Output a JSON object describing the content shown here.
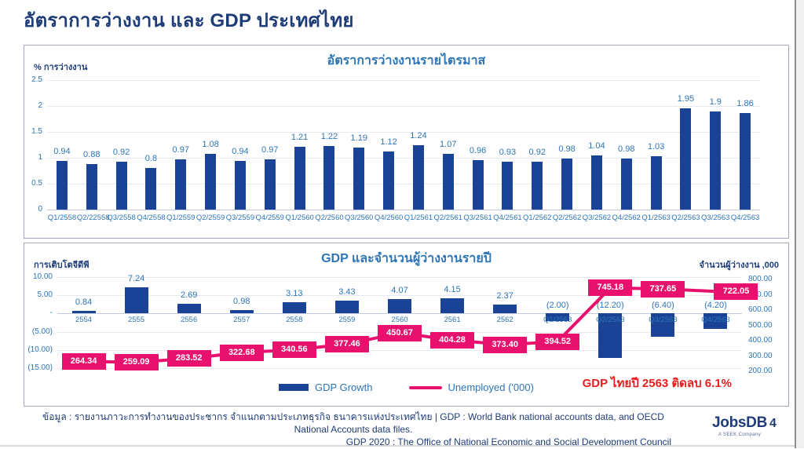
{
  "page": {
    "title": "อัตราการว่างงาน และ GDP ประเทศไทย",
    "annotation": "GDP ไทยปี 2563 ติดลบ 6.1%",
    "footer_line1": "ข้อมูล : รายงานภาวะการทำงานของประชากร จำแนกตามประเภทธุรกิจ ธนาคารแห่งประเทศไทย | GDP : World Bank national accounts data, and OECD National Accounts data files.",
    "footer_line2": "GDP 2020 : The Office of National Economic and Social Development Council",
    "page_number": "4",
    "logo": {
      "text": "JobsDB",
      "tagline": "A SEEK Company"
    }
  },
  "colors": {
    "title_navy": "#1e3c78",
    "bar_navy": "#1a4296",
    "label_blue": "#2e75b6",
    "pink": "#e8126e",
    "annotation_red": "#ea1d1d"
  },
  "chart_data": [
    {
      "type": "bar",
      "title": "อัตราการว่างงานรายไตรมาส",
      "ylabel": "% การว่างงาน",
      "ylim": [
        0,
        2.5
      ],
      "yticks": [
        "2.5",
        "2",
        "1.5",
        "1",
        "0.5",
        "0"
      ],
      "grid": true,
      "categories": [
        "Q1/2558",
        "Q2/22558",
        "Q3/2558",
        "Q4/2558",
        "Q1/2559",
        "Q2/2559",
        "Q3/2559",
        "Q4/2559",
        "Q1/2560",
        "Q2/2560",
        "Q3/2560",
        "Q4/2560",
        "Q1/2561",
        "Q2/2561",
        "Q3/2561",
        "Q4/2561",
        "Q1/2562",
        "Q2/2562",
        "Q3/2562",
        "Q4/2562",
        "Q1/2563",
        "Q2/2563",
        "Q3/2563",
        "Q4/2563"
      ],
      "values": [
        0.94,
        0.88,
        0.92,
        0.8,
        0.97,
        1.08,
        0.94,
        0.97,
        1.21,
        1.22,
        1.19,
        1.12,
        1.24,
        1.07,
        0.96,
        0.93,
        0.92,
        0.98,
        1.04,
        0.98,
        1.03,
        1.95,
        1.9,
        1.86
      ],
      "value_labels": [
        "0.94",
        "0.88",
        "0.92",
        "0.8",
        "0.97",
        "1.08",
        "0.94",
        "0.97",
        "1.21",
        "1.22",
        "1.19",
        "1.12",
        "1.24",
        "1.07",
        "0.96",
        "0.93",
        "0.92",
        "0.98",
        "1.04",
        "0.98",
        "1.03",
        "1.95",
        "1.9",
        "1.86"
      ]
    },
    {
      "type": "combo-bar-line",
      "title": "GDP และจำนวนผู้ว่างงานรายปี",
      "ylabel_left": "การเติบโตจีดีพี",
      "ylabel_right": "จำนวนผู้ว่างงาน ,000",
      "ylim_left": [
        -15,
        10
      ],
      "ylim_right": [
        200,
        800
      ],
      "yticks_left": [
        "10.00",
        "5.00",
        "-",
        "(5.00)",
        "(10.00)",
        "(15.00)"
      ],
      "yticks_right": [
        "800.00",
        "700.00",
        "600.00",
        "500.00",
        "400.00",
        "300.00",
        "200.00"
      ],
      "grid": true,
      "legend_position": "bottom",
      "categories": [
        "2554",
        "2555",
        "2556",
        "2557",
        "2558",
        "2559",
        "2560",
        "2561",
        "2562",
        "Q1/2563",
        "Q2/2563",
        "Q3/2563",
        "Q4/2563"
      ],
      "series": [
        {
          "name": "GDP Growth",
          "type": "bar",
          "axis": "left",
          "values": [
            0.84,
            7.24,
            2.69,
            0.98,
            3.13,
            3.43,
            4.07,
            4.15,
            2.37,
            -2.0,
            -12.2,
            -6.4,
            -4.2
          ],
          "value_labels": [
            "0.84",
            "7.24",
            "2.69",
            "0.98",
            "3.13",
            "3.43",
            "4.07",
            "4.15",
            "2.37",
            "(2.00)",
            "(12.20)",
            "(6.40)",
            "(4.20)"
          ]
        },
        {
          "name": "Unemployed ('000)",
          "type": "line",
          "axis": "right",
          "values": [
            264.34,
            259.09,
            283.52,
            322.68,
            340.56,
            377.46,
            450.67,
            404.28,
            373.4,
            394.52,
            745.18,
            737.65,
            722.05
          ],
          "value_labels": [
            "264.34",
            "259.09",
            "283.52",
            "322.68",
            "340.56",
            "377.46",
            "450.67",
            "404.28",
            "373.40",
            "394.52",
            "745.18",
            "737.65",
            "722.05"
          ]
        }
      ]
    }
  ]
}
